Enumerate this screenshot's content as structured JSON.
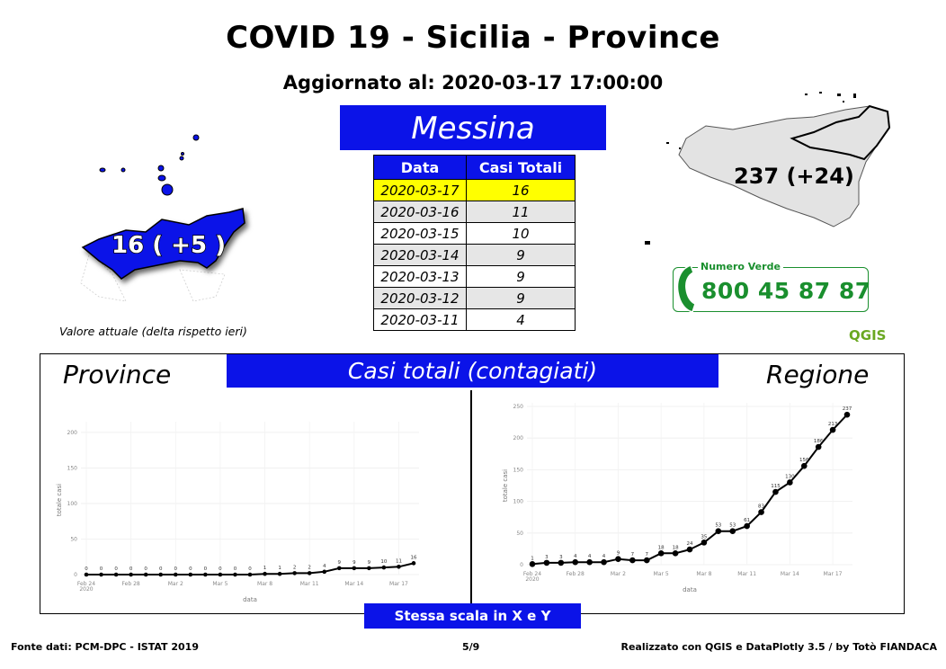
{
  "title": "COVID 19 - Sicilia - Province",
  "updated": "Aggiornato al: 2020-03-17 17:00:00",
  "province": "Messina",
  "table": {
    "headers": [
      "Data",
      "Casi Totali"
    ],
    "rows": [
      {
        "date": "2020-03-17",
        "value": "16"
      },
      {
        "date": "2020-03-16",
        "value": "11"
      },
      {
        "date": "2020-03-15",
        "value": "10"
      },
      {
        "date": "2020-03-14",
        "value": "9"
      },
      {
        "date": "2020-03-13",
        "value": "9"
      },
      {
        "date": "2020-03-12",
        "value": "9"
      },
      {
        "date": "2020-03-11",
        "value": "4"
      }
    ]
  },
  "map_left_label": "16 ( +5 )",
  "map_right_label": "237 (+24)",
  "legend_note": "Valore attuale (delta rispetto ieri)",
  "phone": {
    "label": "Numero Verde",
    "number": "800 45 87 87"
  },
  "qgis_logo": "QGIS",
  "charts_banner": "Casi totali (contagiati)",
  "label_province": "Province",
  "label_region": "Regione",
  "scale_banner": "Stessa scala in X e Y",
  "footer": {
    "left": "Fonte dati: PCM-DPC - ISTAT 2019",
    "center": "5/9",
    "right": "Realizzato con QGIS e DataPlotly 3.5 / by Totò FIANDACA"
  },
  "colors": {
    "accent_blue": "#0b13e8",
    "highlight": "#ffff00",
    "green": "#1a8f2e"
  },
  "chart_data": [
    {
      "type": "line",
      "name": "Province",
      "xlabel": "data",
      "ylabel": "totale casi",
      "x_ticks": [
        "Feb 24\n2020",
        "Feb 28",
        "Mar 2",
        "Mar 5",
        "Mar 8",
        "Mar 11",
        "Mar 14",
        "Mar 17"
      ],
      "y_ticks": [
        0,
        50,
        100,
        150,
        200
      ],
      "ylim": [
        0,
        210
      ],
      "x": [
        "2020-02-24",
        "2020-02-25",
        "2020-02-26",
        "2020-02-27",
        "2020-02-28",
        "2020-02-29",
        "2020-03-01",
        "2020-03-02",
        "2020-03-03",
        "2020-03-04",
        "2020-03-05",
        "2020-03-06",
        "2020-03-07",
        "2020-03-08",
        "2020-03-09",
        "2020-03-10",
        "2020-03-11",
        "2020-03-12",
        "2020-03-13",
        "2020-03-14",
        "2020-03-15",
        "2020-03-16",
        "2020-03-17"
      ],
      "values": [
        0,
        0,
        0,
        0,
        0,
        0,
        0,
        0,
        0,
        0,
        0,
        0,
        1,
        1,
        2,
        2,
        4,
        9,
        9,
        9,
        10,
        11,
        16
      ]
    },
    {
      "type": "line",
      "name": "Regione",
      "xlabel": "data",
      "ylabel": "totale casi",
      "x_ticks": [
        "Feb 24\n2020",
        "Feb 28",
        "Mar 2",
        "Mar 5",
        "Mar 8",
        "Mar 11",
        "Mar 14",
        "Mar 17"
      ],
      "y_ticks": [
        0,
        50,
        100,
        150,
        200,
        250
      ],
      "ylim": [
        0,
        250
      ],
      "x": [
        "2020-02-24",
        "2020-02-25",
        "2020-02-26",
        "2020-02-27",
        "2020-02-28",
        "2020-02-29",
        "2020-03-01",
        "2020-03-02",
        "2020-03-03",
        "2020-03-04",
        "2020-03-05",
        "2020-03-06",
        "2020-03-07",
        "2020-03-08",
        "2020-03-09",
        "2020-03-10",
        "2020-03-11",
        "2020-03-12",
        "2020-03-13",
        "2020-03-14",
        "2020-03-15",
        "2020-03-16",
        "2020-03-17"
      ],
      "values": [
        1,
        3,
        3,
        4,
        4,
        4,
        9,
        7,
        7,
        18,
        18,
        24,
        35,
        53,
        53,
        61,
        83,
        115,
        130,
        156,
        186,
        213,
        237
      ]
    }
  ]
}
